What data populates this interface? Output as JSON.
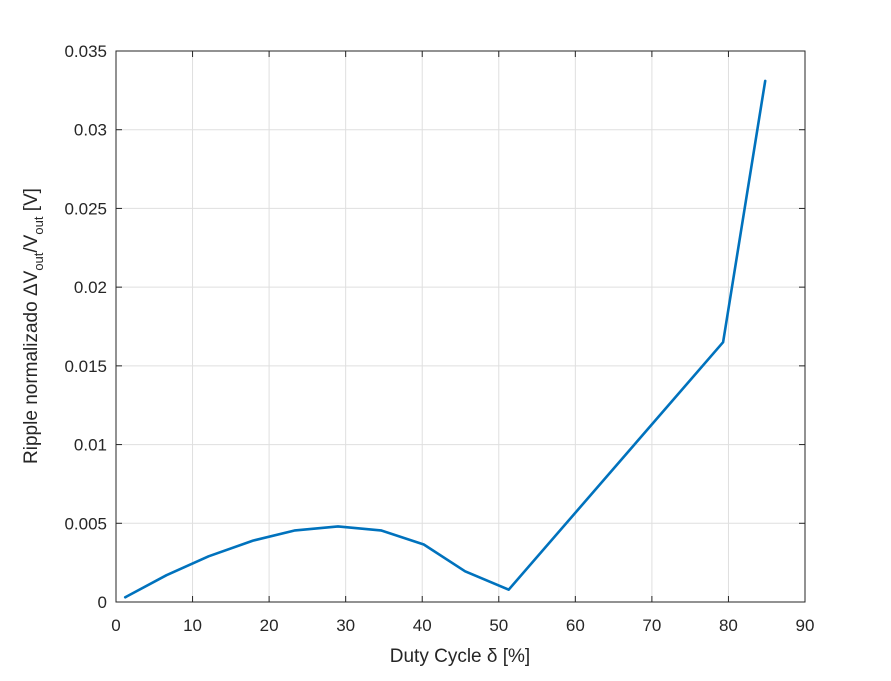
{
  "chart_data": {
    "type": "line",
    "xlabel": "Duty Cycle δ [%]",
    "ylabel": {
      "prefix": "Ripple normalizado ΔV",
      "sub1": "out",
      "mid": "/V",
      "sub2": "out",
      "suffix": " [V]"
    },
    "xlim": [
      0,
      90
    ],
    "ylim": [
      0,
      0.035
    ],
    "xticks": [
      0,
      10,
      20,
      30,
      40,
      50,
      60,
      70,
      80,
      90
    ],
    "yticks": [
      0,
      0.005,
      0.01,
      0.015,
      0.02,
      0.025,
      0.03,
      0.035
    ],
    "xtick_labels": [
      "0",
      "10",
      "20",
      "30",
      "40",
      "50",
      "60",
      "70",
      "80",
      "90"
    ],
    "ytick_labels": [
      "0",
      "0.005",
      "0.01",
      "0.015",
      "0.02",
      "0.025",
      "0.03",
      "0.035"
    ],
    "grid": true,
    "line_color": "#0072BD",
    "series": [
      {
        "x": [
          1.2,
          6.6,
          12.1,
          17.9,
          23.4,
          29.0,
          34.6,
          40.2,
          45.6,
          51.3,
          79.3,
          84.8
        ],
        "y": [
          0.0003,
          0.0017,
          0.0029,
          0.0039,
          0.00455,
          0.0048,
          0.00455,
          0.00365,
          0.00195,
          0.00078,
          0.0165,
          0.0331
        ]
      }
    ]
  }
}
